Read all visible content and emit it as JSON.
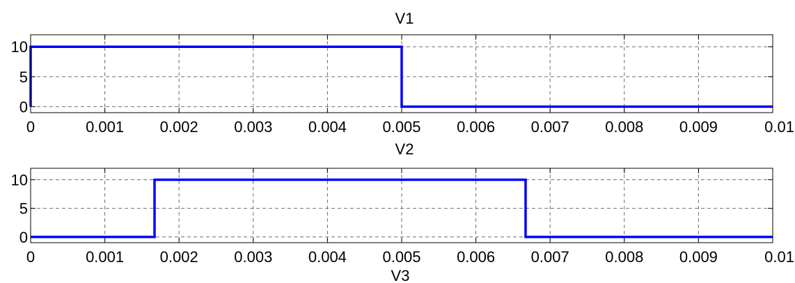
{
  "chart_data": [
    {
      "type": "line",
      "title": "V1",
      "xlabel": "",
      "ylabel": "",
      "xlim": [
        0,
        0.01
      ],
      "ylim": [
        -1,
        12
      ],
      "xticks": [
        0,
        0.001,
        0.002,
        0.003,
        0.004,
        0.005,
        0.006,
        0.007,
        0.008,
        0.009,
        0.01
      ],
      "xtick_labels": [
        "0",
        "0.001",
        "0.002",
        "0.003",
        "0.004",
        "0.005",
        "0.006",
        "0.007",
        "0.008",
        "0.009",
        "0.01"
      ],
      "yticks": [
        0,
        5,
        10
      ],
      "ytick_labels": [
        "0",
        "5",
        "10"
      ],
      "grid": true,
      "color": "#0000ff",
      "series": [
        {
          "x": [
            0,
            0,
            0.005,
            0.005,
            0.01
          ],
          "y": [
            0,
            10,
            10,
            0,
            0
          ]
        }
      ]
    },
    {
      "type": "line",
      "title": "V2",
      "xlabel": "",
      "ylabel": "",
      "xlim": [
        0,
        0.01
      ],
      "ylim": [
        -1,
        12
      ],
      "xticks": [
        0,
        0.001,
        0.002,
        0.003,
        0.004,
        0.005,
        0.006,
        0.007,
        0.008,
        0.009,
        0.01
      ],
      "xtick_labels": [
        "0",
        "0.001",
        "0.002",
        "0.003",
        "0.004",
        "0.005",
        "0.006",
        "0.007",
        "0.008",
        "0.009",
        "0.01"
      ],
      "yticks": [
        0,
        5,
        10
      ],
      "ytick_labels": [
        "0",
        "5",
        "10"
      ],
      "grid": true,
      "color": "#0000ff",
      "series": [
        {
          "x": [
            0,
            0.00167,
            0.00167,
            0.00667,
            0.00667,
            0.01
          ],
          "y": [
            0,
            0,
            10,
            10,
            0,
            0
          ]
        }
      ]
    }
  ],
  "next_title": "V3"
}
